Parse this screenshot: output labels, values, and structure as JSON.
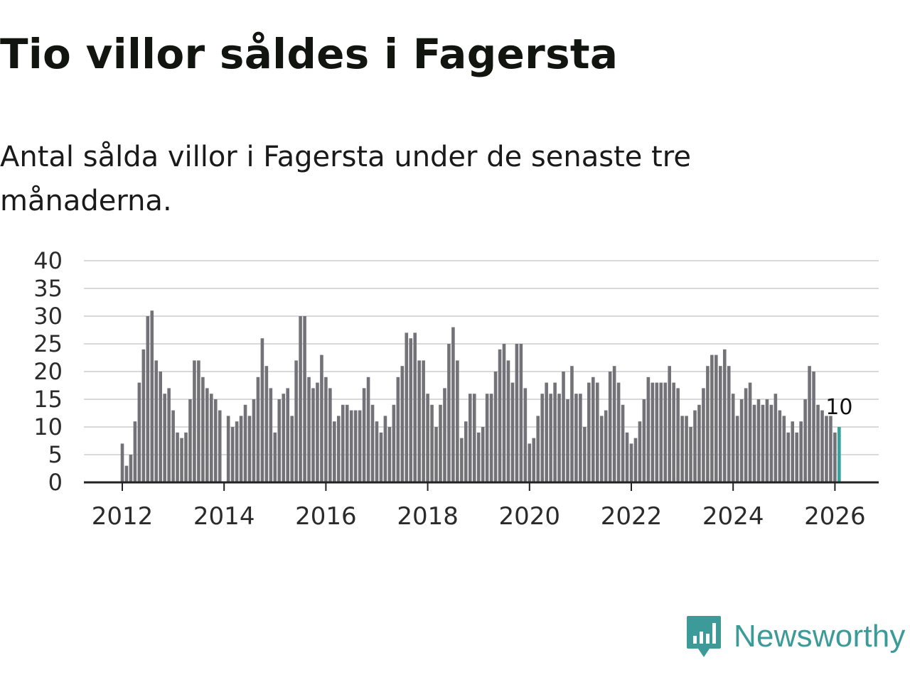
{
  "title": "Tio villor såldes i Fagersta",
  "subtitle": "Antal sålda villor i Fagersta under de senaste tre månaderna.",
  "colors": {
    "bar": "#737278",
    "highlight": "#33a39b",
    "grid": "#d9d9d9",
    "axis": "#222222",
    "brand": "#3c9b98"
  },
  "chart_data": {
    "type": "bar",
    "x_start": {
      "year": 2012,
      "month": 1
    },
    "values": [
      7,
      3,
      5,
      11,
      18,
      24,
      30,
      31,
      22,
      20,
      16,
      17,
      13,
      9,
      8,
      9,
      15,
      22,
      22,
      19,
      17,
      16,
      15,
      13,
      null,
      12,
      10,
      11,
      12,
      14,
      12,
      15,
      19,
      26,
      21,
      17,
      9,
      15,
      16,
      17,
      12,
      22,
      30,
      30,
      19,
      17,
      18,
      23,
      19,
      17,
      11,
      12,
      14,
      14,
      13,
      13,
      13,
      17,
      19,
      14,
      11,
      9,
      12,
      10,
      14,
      19,
      21,
      27,
      26,
      27,
      22,
      22,
      16,
      14,
      10,
      14,
      17,
      25,
      28,
      22,
      8,
      11,
      16,
      16,
      9,
      10,
      16,
      16,
      20,
      24,
      25,
      22,
      18,
      25,
      25,
      17,
      7,
      8,
      12,
      16,
      18,
      16,
      18,
      16,
      20,
      15,
      21,
      16,
      16,
      10,
      18,
      19,
      18,
      12,
      13,
      20,
      21,
      18,
      14,
      9,
      7,
      8,
      11,
      15,
      19,
      18,
      18,
      18,
      18,
      21,
      18,
      17,
      12,
      12,
      10,
      13,
      14,
      17,
      21,
      23,
      23,
      21,
      24,
      21,
      16,
      12,
      15,
      17,
      18,
      14,
      15,
      14,
      15,
      14,
      16,
      13,
      12,
      9,
      11,
      9,
      11,
      15,
      21,
      20,
      14,
      13,
      12,
      12,
      9,
      10
    ],
    "highlight_last": true,
    "last_label": "10",
    "ylim": [
      0,
      40
    ],
    "y_ticks": [
      "0",
      "5",
      "10",
      "15",
      "20",
      "25",
      "30",
      "35",
      "40"
    ],
    "x_ticks": [
      "2012",
      "2014",
      "2016",
      "2018",
      "2020",
      "2022",
      "2024",
      "2026"
    ],
    "grid": true
  },
  "brand": {
    "name": "Newsworthy",
    "icon": "newsworthy-logo-icon"
  }
}
